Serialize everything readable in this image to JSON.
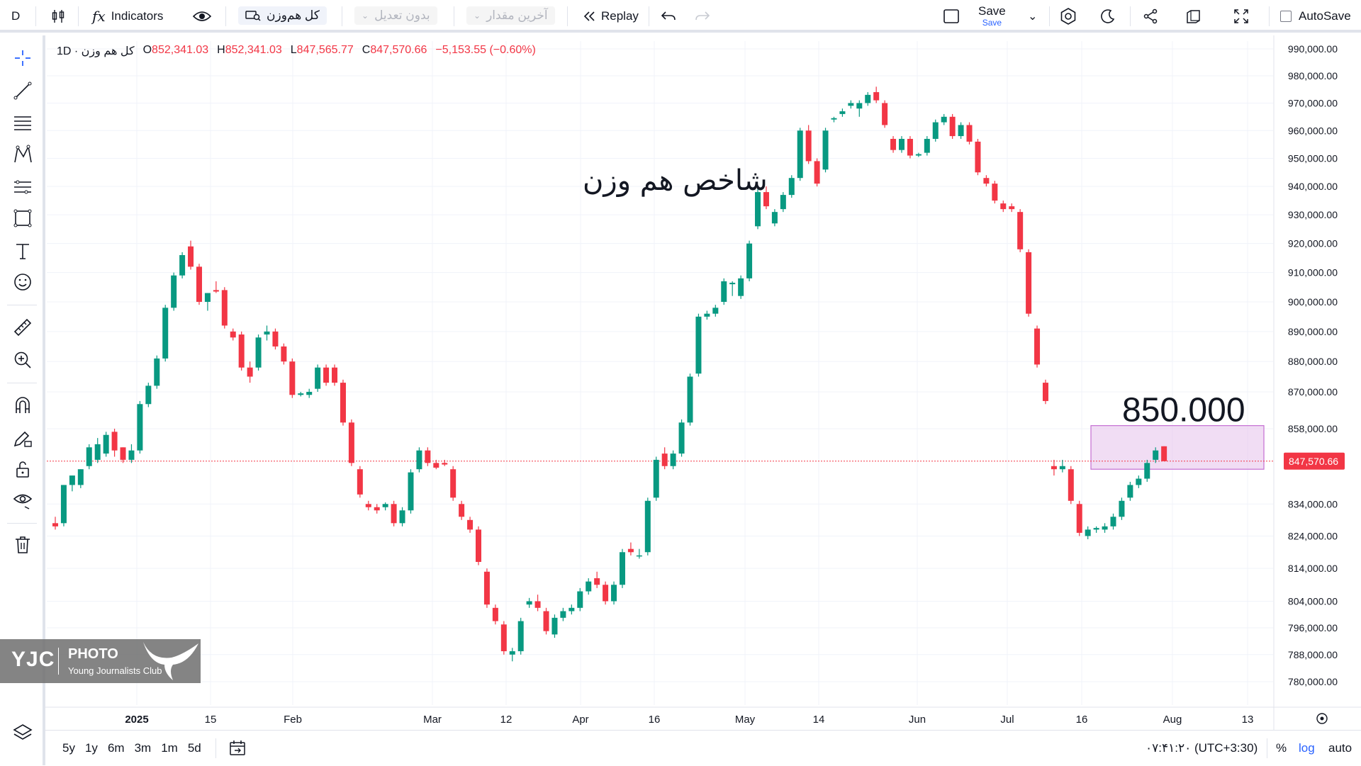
{
  "toolbar": {
    "symbol_short": "D",
    "indicators_label": "Indicators",
    "symbol_name": "کل هم‌وزن",
    "adjust_label": "بدون تعدیل",
    "last_value_label": "آخرین مقدار",
    "replay_label": "Replay",
    "save_label": "Save",
    "save_sub_label": "Save",
    "autosave_label": "AutoSave"
  },
  "legend": {
    "title": "کل هم وزن · 1D",
    "o_label": "O",
    "o_value": "852,341.03",
    "h_label": "H",
    "h_value": "852,341.03",
    "l_label": "L",
    "l_value": "847,565.77",
    "c_label": "C",
    "c_value": "847,570.66",
    "change": "−5,153.55 (−0.60%)"
  },
  "annotations": {
    "chart_title": "شاخص هم وزن",
    "target_label": "850.000",
    "price_label": "847,570.66"
  },
  "watermark": {
    "brand": "YJC",
    "line1": "PHOTO",
    "line2": "Young Journalists Club"
  },
  "bottombar": {
    "ranges": [
      "5y",
      "1y",
      "6m",
      "3m",
      "1m",
      "5d"
    ],
    "clock": "۰۷:۴۱:۲۰ (UTC+3:30)",
    "percent_label": "%",
    "log_label": "log",
    "auto_label": "auto"
  },
  "colors": {
    "up": "#089981",
    "down": "#f23645",
    "box_fill": "#e7c6ec",
    "box_stroke": "#c46fd3",
    "accent": "#2962ff"
  },
  "chart_data": {
    "type": "candlestick",
    "title": "شاخص هم وزن",
    "y_ticks": [
      780000,
      788000,
      796000,
      804000,
      814000,
      824000,
      834000,
      847570.66,
      858000,
      870000,
      880000,
      890000,
      900000,
      910000,
      920000,
      930000,
      940000,
      950000,
      960000,
      970000,
      980000,
      990000
    ],
    "y_tick_labels": [
      "780,000.00",
      "788,000.00",
      "796,000.00",
      "804,000.00",
      "814,000.00",
      "824,000.00",
      "834,000.00",
      "847,570.66",
      "858,000.00",
      "870,000.00",
      "880,000.00",
      "890,000.00",
      "900,000.00",
      "910,000.00",
      "920,000.00",
      "930,000.00",
      "940,000.00",
      "950,000.00",
      "960,000.00",
      "970,000.00",
      "980,000.00",
      "990,000.00"
    ],
    "x_tick_labels": [
      "2025",
      "15",
      "Feb",
      "Mar",
      "12",
      "Apr",
      "16",
      "May",
      "14",
      "Jun",
      "Jul",
      "16",
      "Aug",
      "13"
    ],
    "scale": "log",
    "current_price": 847570.66,
    "target_zone": {
      "low": 845000,
      "high": 859000,
      "label": "850.000"
    },
    "candles": [
      {
        "o": 828000,
        "h": 830000,
        "l": 826000,
        "c": 827000
      },
      {
        "o": 828000,
        "h": 840000,
        "l": 827000,
        "c": 840000
      },
      {
        "o": 840000,
        "h": 843000,
        "l": 838000,
        "c": 843000
      },
      {
        "o": 840000,
        "h": 845000,
        "l": 839000,
        "c": 845000
      },
      {
        "o": 846000,
        "h": 853000,
        "l": 845000,
        "c": 852000
      },
      {
        "o": 848000,
        "h": 855000,
        "l": 847000,
        "c": 853000
      },
      {
        "o": 850000,
        "h": 857000,
        "l": 849000,
        "c": 856000
      },
      {
        "o": 857000,
        "h": 858000,
        "l": 849000,
        "c": 851000
      },
      {
        "o": 852000,
        "h": 852000,
        "l": 847000,
        "c": 848000
      },
      {
        "o": 848000,
        "h": 853000,
        "l": 847000,
        "c": 851000
      },
      {
        "o": 851000,
        "h": 867000,
        "l": 850000,
        "c": 866000
      },
      {
        "o": 866000,
        "h": 873000,
        "l": 865000,
        "c": 872000
      },
      {
        "o": 872000,
        "h": 882000,
        "l": 871000,
        "c": 881000
      },
      {
        "o": 881000,
        "h": 899000,
        "l": 880000,
        "c": 898000
      },
      {
        "o": 898000,
        "h": 910000,
        "l": 897000,
        "c": 909000
      },
      {
        "o": 909000,
        "h": 917000,
        "l": 908000,
        "c": 916000
      },
      {
        "o": 919000,
        "h": 921000,
        "l": 911000,
        "c": 912000
      },
      {
        "o": 912000,
        "h": 913000,
        "l": 899000,
        "c": 900000
      },
      {
        "o": 900000,
        "h": 903000,
        "l": 897000,
        "c": 903000
      },
      {
        "o": 904000,
        "h": 907000,
        "l": 903000,
        "c": 903500
      },
      {
        "o": 904000,
        "h": 905000,
        "l": 891000,
        "c": 892000
      },
      {
        "o": 890000,
        "h": 891000,
        "l": 887000,
        "c": 888000
      },
      {
        "o": 889000,
        "h": 890000,
        "l": 877000,
        "c": 878000
      },
      {
        "o": 878000,
        "h": 880000,
        "l": 873000,
        "c": 875000
      },
      {
        "o": 878000,
        "h": 889000,
        "l": 877000,
        "c": 888000
      },
      {
        "o": 889000,
        "h": 892000,
        "l": 887000,
        "c": 890000
      },
      {
        "o": 890000,
        "h": 891000,
        "l": 884000,
        "c": 885000
      },
      {
        "o": 885000,
        "h": 886000,
        "l": 879000,
        "c": 880000
      },
      {
        "o": 880000,
        "h": 881000,
        "l": 868000,
        "c": 869000
      },
      {
        "o": 869000,
        "h": 870000,
        "l": 868500,
        "c": 869500
      },
      {
        "o": 869000,
        "h": 871000,
        "l": 868000,
        "c": 870000
      },
      {
        "o": 871000,
        "h": 879000,
        "l": 870000,
        "c": 878000
      },
      {
        "o": 878000,
        "h": 879000,
        "l": 872000,
        "c": 873000
      },
      {
        "o": 878000,
        "h": 879000,
        "l": 872000,
        "c": 873000
      },
      {
        "o": 873000,
        "h": 874000,
        "l": 859000,
        "c": 860000
      },
      {
        "o": 860000,
        "h": 861000,
        "l": 846000,
        "c": 847000
      },
      {
        "o": 845000,
        "h": 846000,
        "l": 836000,
        "c": 837000
      },
      {
        "o": 834000,
        "h": 835000,
        "l": 832000,
        "c": 833000
      },
      {
        "o": 833000,
        "h": 834000,
        "l": 831000,
        "c": 832000
      },
      {
        "o": 833000,
        "h": 834500,
        "l": 832000,
        "c": 834000
      },
      {
        "o": 834000,
        "h": 835000,
        "l": 827000,
        "c": 828000
      },
      {
        "o": 828000,
        "h": 833000,
        "l": 827000,
        "c": 832000
      },
      {
        "o": 832000,
        "h": 845000,
        "l": 831000,
        "c": 844000
      },
      {
        "o": 845000,
        "h": 852000,
        "l": 844000,
        "c": 851000
      },
      {
        "o": 851000,
        "h": 852000,
        "l": 846000,
        "c": 847000
      },
      {
        "o": 847000,
        "h": 848000,
        "l": 845000,
        "c": 845500
      },
      {
        "o": 847000,
        "h": 848000,
        "l": 846000,
        "c": 846500
      },
      {
        "o": 845000,
        "h": 846000,
        "l": 835000,
        "c": 836000
      },
      {
        "o": 834000,
        "h": 835000,
        "l": 829000,
        "c": 830000
      },
      {
        "o": 829000,
        "h": 830000,
        "l": 825000,
        "c": 826000
      },
      {
        "o": 826000,
        "h": 827000,
        "l": 815000,
        "c": 816000
      },
      {
        "o": 813000,
        "h": 814000,
        "l": 802000,
        "c": 803000
      },
      {
        "o": 802000,
        "h": 803000,
        "l": 797000,
        "c": 798000
      },
      {
        "o": 797000,
        "h": 798000,
        "l": 788000,
        "c": 789000
      },
      {
        "o": 788000,
        "h": 790000,
        "l": 786000,
        "c": 789000
      },
      {
        "o": 789000,
        "h": 799000,
        "l": 788000,
        "c": 798000
      },
      {
        "o": 803000,
        "h": 805000,
        "l": 802000,
        "c": 804000
      },
      {
        "o": 804000,
        "h": 806000,
        "l": 801000,
        "c": 802000
      },
      {
        "o": 801000,
        "h": 802000,
        "l": 794000,
        "c": 795000
      },
      {
        "o": 794000,
        "h": 800000,
        "l": 793000,
        "c": 799000
      },
      {
        "o": 799000,
        "h": 802000,
        "l": 798000,
        "c": 801000
      },
      {
        "o": 801000,
        "h": 803000,
        "l": 800000,
        "c": 802000
      },
      {
        "o": 802000,
        "h": 808000,
        "l": 801000,
        "c": 807000
      },
      {
        "o": 807000,
        "h": 811000,
        "l": 806000,
        "c": 810000
      },
      {
        "o": 811000,
        "h": 813000,
        "l": 808000,
        "c": 809000
      },
      {
        "o": 809000,
        "h": 810000,
        "l": 803000,
        "c": 804000
      },
      {
        "o": 804000,
        "h": 810000,
        "l": 803000,
        "c": 809000
      },
      {
        "o": 809000,
        "h": 820000,
        "l": 808000,
        "c": 819000
      },
      {
        "o": 820000,
        "h": 822000,
        "l": 818000,
        "c": 819000
      },
      {
        "o": 818000,
        "h": 820000,
        "l": 817000,
        "c": 818000
      },
      {
        "o": 819000,
        "h": 836000,
        "l": 818000,
        "c": 835000
      },
      {
        "o": 836000,
        "h": 849000,
        "l": 835000,
        "c": 848000
      },
      {
        "o": 850000,
        "h": 852000,
        "l": 845000,
        "c": 846000
      },
      {
        "o": 846000,
        "h": 851000,
        "l": 845000,
        "c": 850000
      },
      {
        "o": 850000,
        "h": 861000,
        "l": 849000,
        "c": 860000
      },
      {
        "o": 860000,
        "h": 876000,
        "l": 859000,
        "c": 875000
      },
      {
        "o": 876000,
        "h": 896000,
        "l": 875000,
        "c": 895000
      },
      {
        "o": 895000,
        "h": 897000,
        "l": 894000,
        "c": 896000
      },
      {
        "o": 896000,
        "h": 899000,
        "l": 895000,
        "c": 898000
      },
      {
        "o": 900000,
        "h": 908000,
        "l": 899000,
        "c": 907000
      },
      {
        "o": 906000,
        "h": 907000,
        "l": 902000,
        "c": 906500
      },
      {
        "o": 902000,
        "h": 909000,
        "l": 901000,
        "c": 908000
      },
      {
        "o": 908000,
        "h": 921000,
        "l": 907000,
        "c": 920000
      },
      {
        "o": 926000,
        "h": 939000,
        "l": 925000,
        "c": 938000
      },
      {
        "o": 938000,
        "h": 940000,
        "l": 932000,
        "c": 933000
      },
      {
        "o": 927000,
        "h": 932000,
        "l": 926000,
        "c": 931000
      },
      {
        "o": 932000,
        "h": 938000,
        "l": 931000,
        "c": 937000
      },
      {
        "o": 937000,
        "h": 944000,
        "l": 936000,
        "c": 943000
      },
      {
        "o": 943000,
        "h": 961000,
        "l": 942000,
        "c": 960000
      },
      {
        "o": 960000,
        "h": 962000,
        "l": 948000,
        "c": 949000
      },
      {
        "o": 949000,
        "h": 950000,
        "l": 940000,
        "c": 941000
      },
      {
        "o": 946000,
        "h": 961000,
        "l": 945000,
        "c": 960000
      },
      {
        "o": 964000,
        "h": 965000,
        "l": 963000,
        "c": 964500
      },
      {
        "o": 966000,
        "h": 968000,
        "l": 965000,
        "c": 967000
      },
      {
        "o": 969000,
        "h": 971000,
        "l": 968000,
        "c": 970000
      },
      {
        "o": 968000,
        "h": 971000,
        "l": 965000,
        "c": 970000
      },
      {
        "o": 970000,
        "h": 974000,
        "l": 969000,
        "c": 973000
      },
      {
        "o": 974000,
        "h": 976000,
        "l": 970000,
        "c": 971000
      },
      {
        "o": 970000,
        "h": 971000,
        "l": 961000,
        "c": 962000
      },
      {
        "o": 957000,
        "h": 958000,
        "l": 952000,
        "c": 953000
      },
      {
        "o": 953000,
        "h": 958000,
        "l": 952000,
        "c": 957000
      },
      {
        "o": 957000,
        "h": 958000,
        "l": 950000,
        "c": 951000
      },
      {
        "o": 951000,
        "h": 952000,
        "l": 950500,
        "c": 951500
      },
      {
        "o": 952000,
        "h": 958000,
        "l": 951000,
        "c": 957000
      },
      {
        "o": 957000,
        "h": 964000,
        "l": 956000,
        "c": 963000
      },
      {
        "o": 963000,
        "h": 966000,
        "l": 962000,
        "c": 965000
      },
      {
        "o": 965000,
        "h": 966000,
        "l": 957000,
        "c": 958000
      },
      {
        "o": 958000,
        "h": 963000,
        "l": 957000,
        "c": 962000
      },
      {
        "o": 962000,
        "h": 963000,
        "l": 955000,
        "c": 956000
      },
      {
        "o": 956000,
        "h": 957000,
        "l": 944000,
        "c": 945000
      },
      {
        "o": 943000,
        "h": 944000,
        "l": 940000,
        "c": 941000
      },
      {
        "o": 941000,
        "h": 942000,
        "l": 934000,
        "c": 935000
      },
      {
        "o": 934000,
        "h": 935000,
        "l": 931000,
        "c": 932000
      },
      {
        "o": 933000,
        "h": 934000,
        "l": 931000,
        "c": 932000
      },
      {
        "o": 931000,
        "h": 932000,
        "l": 917000,
        "c": 918000
      },
      {
        "o": 917000,
        "h": 918000,
        "l": 895000,
        "c": 896000
      },
      {
        "o": 891000,
        "h": 892000,
        "l": 878000,
        "c": 879000
      },
      {
        "o": 873000,
        "h": 874000,
        "l": 866000,
        "c": 867000
      },
      {
        "o": 846000,
        "h": 848000,
        "l": 843000,
        "c": 845000
      },
      {
        "o": 845000,
        "h": 848000,
        "l": 844000,
        "c": 846000
      },
      {
        "o": 845000,
        "h": 846000,
        "l": 834000,
        "c": 835000
      },
      {
        "o": 834000,
        "h": 835000,
        "l": 824000,
        "c": 825000
      },
      {
        "o": 824000,
        "h": 827000,
        "l": 823000,
        "c": 826000
      },
      {
        "o": 826000,
        "h": 827000,
        "l": 825000,
        "c": 826500
      },
      {
        "o": 826000,
        "h": 828000,
        "l": 825000,
        "c": 827000
      },
      {
        "o": 827000,
        "h": 831000,
        "l": 826000,
        "c": 830000
      },
      {
        "o": 830000,
        "h": 836000,
        "l": 829000,
        "c": 835000
      },
      {
        "o": 836000,
        "h": 841000,
        "l": 835000,
        "c": 840000
      },
      {
        "o": 840000,
        "h": 843000,
        "l": 839000,
        "c": 842000
      },
      {
        "o": 842000,
        "h": 848000,
        "l": 841000,
        "c": 847000
      },
      {
        "o": 848000,
        "h": 852000,
        "l": 847000,
        "c": 851000
      },
      {
        "o": 852341.03,
        "h": 852341.03,
        "l": 847565.77,
        "c": 847570.66
      }
    ]
  }
}
